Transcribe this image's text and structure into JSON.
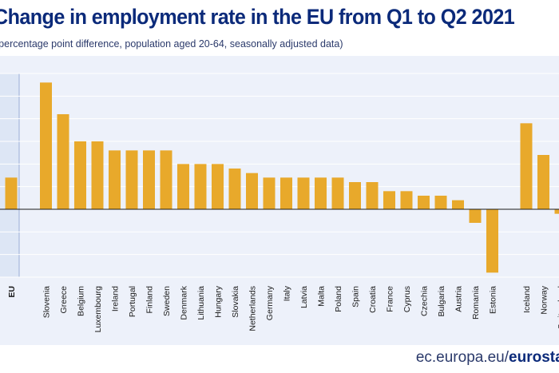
{
  "header": {
    "title": "Change in employment rate in the EU from Q1 to Q2 2021",
    "subtitle": "(percentage point difference, population aged 20-64, seasonally adjusted data)"
  },
  "footer": {
    "source_prefix": "ec.europa.eu/",
    "source_bold": "eurostat"
  },
  "colors": {
    "bar": "#e8a92b",
    "eu_highlight": "#dde6f5",
    "background": "#edf1fa",
    "title": "#0b2a7a"
  },
  "chart_data": {
    "type": "bar",
    "title": "Change in employment rate in the EU from Q1 to Q2 2021",
    "subtitle": "(percentage point difference, population aged 20-64, seasonally adjusted data)",
    "xlabel": "",
    "ylabel": "",
    "ylim": [
      -1.5,
      3.0
    ],
    "grid": true,
    "categories": [
      "EU",
      "Slovenia",
      "Greece",
      "Belgium",
      "Luxembourg",
      "Ireland",
      "Portugal",
      "Finland",
      "Sweden",
      "Denmark",
      "Lithuania",
      "Hungary",
      "Slovakia",
      "Netherlands",
      "Germany",
      "Italy",
      "Latvia",
      "Malta",
      "Poland",
      "Spain",
      "Croatia",
      "France",
      "Cyprus",
      "Czechia",
      "Bulgaria",
      "Austria",
      "Romania",
      "Estonia",
      "Iceland",
      "Norway",
      "Switzerland"
    ],
    "values": [
      0.7,
      2.8,
      2.1,
      1.5,
      1.5,
      1.3,
      1.3,
      1.3,
      1.3,
      1.0,
      1.0,
      1.0,
      0.9,
      0.8,
      0.7,
      0.7,
      0.7,
      0.7,
      0.7,
      0.6,
      0.6,
      0.4,
      0.4,
      0.3,
      0.3,
      0.2,
      -0.3,
      -1.4,
      1.9,
      1.2,
      -0.1
    ]
  }
}
